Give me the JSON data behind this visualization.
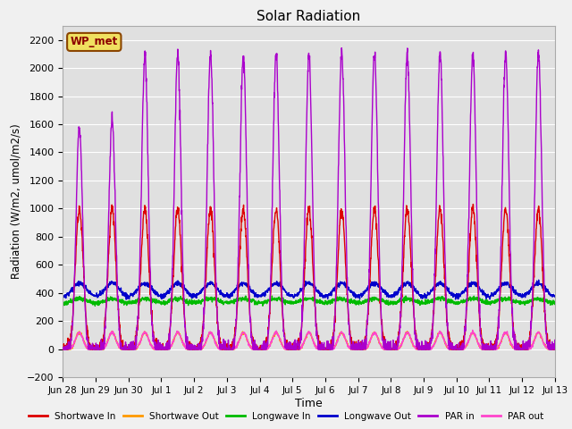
{
  "title": "Solar Radiation",
  "ylabel": "Radiation (W/m2, umol/m2/s)",
  "xlabel": "Time",
  "ylim": [
    -200,
    2300
  ],
  "yticks": [
    -200,
    0,
    200,
    400,
    600,
    800,
    1000,
    1200,
    1400,
    1600,
    1800,
    2000,
    2200
  ],
  "n_days": 16,
  "background_color": "#e0e0e0",
  "grid_color": "#ffffff",
  "fig_bg_color": "#f0f0f0",
  "annotation_text": "WP_met",
  "annotation_bg": "#f0e060",
  "annotation_border": "#8b4500",
  "annotation_text_color": "#8b0000",
  "series": {
    "shortwave_in": {
      "color": "#dd0000",
      "label": "Shortwave In"
    },
    "shortwave_out": {
      "color": "#ff9900",
      "label": "Shortwave Out"
    },
    "longwave_in": {
      "color": "#00bb00",
      "label": "Longwave In"
    },
    "longwave_out": {
      "color": "#0000cc",
      "label": "Longwave Out"
    },
    "par_in": {
      "color": "#aa00cc",
      "label": "PAR in"
    },
    "par_out": {
      "color": "#ff44cc",
      "label": "PAR out"
    }
  },
  "xtick_labels": [
    "Jun 28",
    "Jun 29",
    "Jun 30",
    "Jul 1",
    "Jul 2",
    "Jul 3",
    "Jul 4",
    "Jul 5",
    "Jul 6",
    "Jul 7",
    "Jul 8",
    "Jul 9",
    "Jul 10",
    "Jul 11",
    "Jul 12",
    "Jul 13"
  ],
  "xtick_positions": [
    0,
    1,
    2,
    3,
    4,
    5,
    6,
    7,
    8,
    9,
    10,
    11,
    12,
    13,
    14,
    15
  ]
}
